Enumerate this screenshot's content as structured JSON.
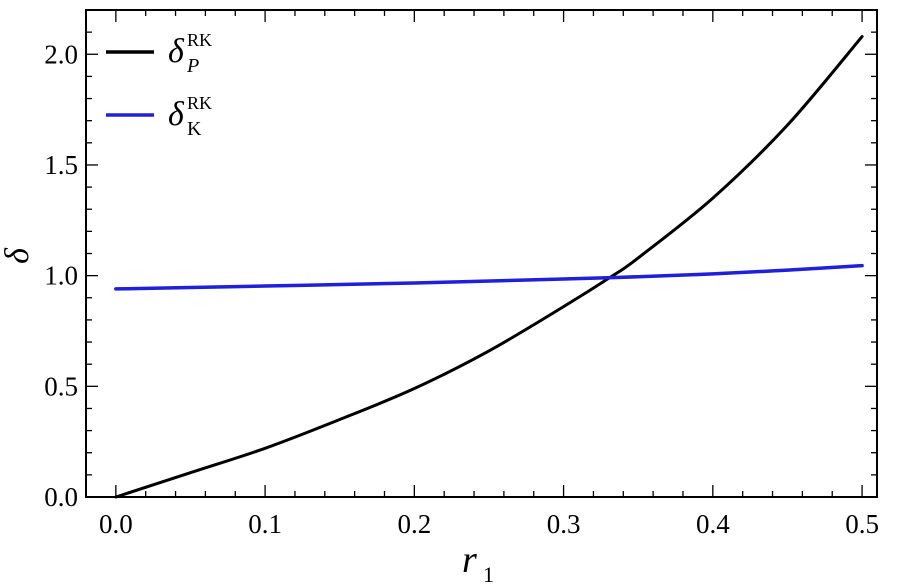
{
  "chart_data": {
    "type": "line",
    "xlabel": "r",
    "xlabel_sub": "1",
    "ylabel": "δ",
    "xlim": [
      -0.02,
      0.51
    ],
    "ylim": [
      0,
      2.2
    ],
    "xticks": [
      0.0,
      0.1,
      0.2,
      0.3,
      0.4,
      0.5
    ],
    "xtick_labels": [
      "0.0",
      "0.1",
      "0.2",
      "0.3",
      "0.4",
      "0.5"
    ],
    "yticks": [
      0.0,
      0.5,
      1.0,
      1.5,
      2.0
    ],
    "ytick_labels": [
      "0.0",
      "0.5",
      "1.0",
      "1.5",
      "2.0"
    ],
    "grid": false,
    "legend_position": "top-left",
    "series": [
      {
        "name": "δ_P^RK",
        "legend_symbol": "δ",
        "legend_sup": "RK",
        "legend_sub": "P",
        "legend_sub_italic": true,
        "color": "#000000",
        "x": [
          0.0,
          0.05,
          0.1,
          0.15,
          0.2,
          0.25,
          0.3,
          0.333,
          0.35,
          0.4,
          0.45,
          0.5
        ],
        "y": [
          0.0,
          0.11,
          0.22,
          0.35,
          0.49,
          0.66,
          0.86,
          1.0,
          1.08,
          1.35,
          1.68,
          2.08
        ]
      },
      {
        "name": "δ_K^RK",
        "legend_symbol": "δ",
        "legend_sup": "RK",
        "legend_sub": "K",
        "legend_sub_italic": false,
        "color": "#1f1fdc",
        "x": [
          0.0,
          0.1,
          0.2,
          0.3,
          0.35,
          0.4,
          0.45,
          0.5
        ],
        "y": [
          0.94,
          0.953,
          0.967,
          0.985,
          0.995,
          1.008,
          1.025,
          1.045
        ]
      }
    ]
  }
}
